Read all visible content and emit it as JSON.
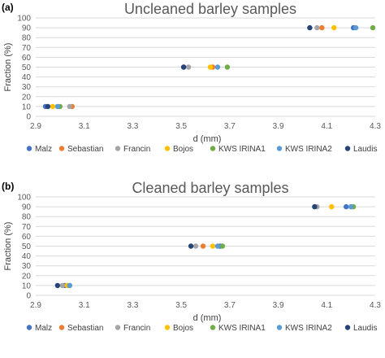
{
  "chart_data": [
    {
      "panel_label": "(a)",
      "type": "scatter",
      "title": "Uncleaned barley samples",
      "xlabel": "d (mm)",
      "ylabel": "Fraction (%)",
      "xlim": [
        2.9,
        4.3
      ],
      "ylim": [
        0,
        100
      ],
      "x_ticks": [
        "2.9",
        "3.1",
        "3.3",
        "3.5",
        "3.7",
        "3.9",
        "4.1",
        "4.3"
      ],
      "y_ticks": [
        "0",
        "10",
        "20",
        "30",
        "40",
        "50",
        "60",
        "70",
        "80",
        "90",
        "100"
      ],
      "grid": "horizontal",
      "legend_position": "bottom",
      "series": [
        {
          "name": "Malz",
          "color": "#4472C4",
          "points": [
            [
              2.94,
              10
            ],
            [
              3.51,
              50
            ],
            [
              4.21,
              90
            ]
          ]
        },
        {
          "name": "Sebastian",
          "color": "#ED7D31",
          "points": [
            [
              3.05,
              10
            ],
            [
              3.63,
              50
            ],
            [
              4.08,
              90
            ]
          ]
        },
        {
          "name": "Francin",
          "color": "#A5A5A5",
          "points": [
            [
              3.04,
              10
            ],
            [
              3.53,
              50
            ],
            [
              4.06,
              90
            ]
          ]
        },
        {
          "name": "Bojos",
          "color": "#FFC000",
          "points": [
            [
              2.97,
              10
            ],
            [
              3.62,
              50
            ],
            [
              4.13,
              90
            ]
          ]
        },
        {
          "name": "KWS IRINA1",
          "color": "#70AD47",
          "points": [
            [
              3.0,
              10
            ],
            [
              3.69,
              50
            ],
            [
              4.29,
              90
            ]
          ]
        },
        {
          "name": "KWS IRINA2",
          "color": "#5B9BD5",
          "points": [
            [
              2.99,
              10
            ],
            [
              3.65,
              50
            ],
            [
              4.22,
              90
            ]
          ]
        },
        {
          "name": "Laudis",
          "color": "#264478",
          "points": [
            [
              2.95,
              10
            ],
            [
              3.51,
              50
            ],
            [
              4.03,
              90
            ]
          ]
        }
      ]
    },
    {
      "panel_label": "(b)",
      "type": "scatter",
      "title": "Cleaned barley samples",
      "xlabel": "d (mm)",
      "ylabel": "Fraction (%)",
      "xlim": [
        2.9,
        4.3
      ],
      "ylim": [
        0,
        100
      ],
      "x_ticks": [
        "2.9",
        "3.1",
        "3.3",
        "3.5",
        "3.7",
        "3.9",
        "4.1",
        "4.3"
      ],
      "y_ticks": [
        "0",
        "10",
        "20",
        "30",
        "40",
        "50",
        "60",
        "70",
        "80",
        "90",
        "100"
      ],
      "grid": "horizontal",
      "legend_position": "bottom",
      "series": [
        {
          "name": "Malz",
          "color": "#4472C4",
          "points": [
            [
              3.02,
              10
            ],
            [
              3.66,
              50
            ],
            [
              4.18,
              90
            ]
          ]
        },
        {
          "name": "Sebastian",
          "color": "#ED7D31",
          "points": [
            [
              3.03,
              10
            ],
            [
              3.59,
              50
            ],
            [
              4.2,
              90
            ]
          ]
        },
        {
          "name": "Francin",
          "color": "#A5A5A5",
          "points": [
            [
              3.01,
              10
            ],
            [
              3.56,
              50
            ],
            [
              4.06,
              90
            ]
          ]
        },
        {
          "name": "Bojos",
          "color": "#FFC000",
          "points": [
            [
              3.03,
              10
            ],
            [
              3.63,
              50
            ],
            [
              4.12,
              90
            ]
          ]
        },
        {
          "name": "KWS IRINA1",
          "color": "#70AD47",
          "points": [
            [
              3.04,
              10
            ],
            [
              3.67,
              50
            ],
            [
              4.21,
              90
            ]
          ]
        },
        {
          "name": "KWS IRINA2",
          "color": "#5B9BD5",
          "points": [
            [
              3.04,
              10
            ],
            [
              3.65,
              50
            ],
            [
              4.2,
              90
            ]
          ]
        },
        {
          "name": "Laudis",
          "color": "#264478",
          "points": [
            [
              2.99,
              10
            ],
            [
              3.54,
              50
            ],
            [
              4.05,
              90
            ]
          ]
        }
      ]
    }
  ]
}
